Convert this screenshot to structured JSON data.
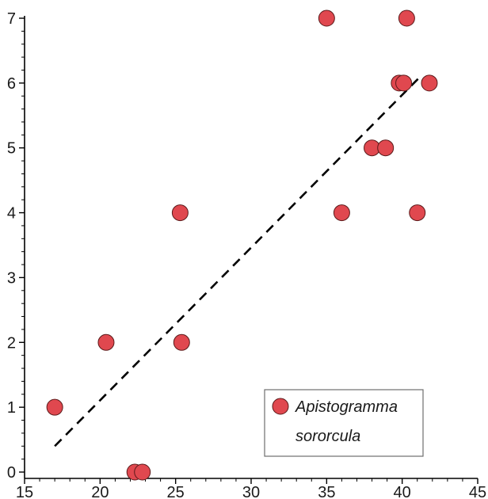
{
  "chart_data": {
    "type": "scatter",
    "title": "",
    "xlabel": "",
    "ylabel": "",
    "xlim": [
      15,
      45
    ],
    "ylim": [
      0,
      7
    ],
    "x_ticks": [
      15,
      20,
      25,
      30,
      35,
      40,
      45
    ],
    "y_ticks": [
      0,
      1,
      2,
      3,
      4,
      5,
      6,
      7
    ],
    "grid": false,
    "legend_position": "bottom-right",
    "marker_color": "#e0484f",
    "marker_edge_color": "#5a1a1a",
    "series": [
      {
        "name": "Apistogramma sororcula",
        "legend_lines": [
          "Apistogramma",
          "sororcula"
        ],
        "x": [
          17.0,
          20.4,
          22.3,
          22.8,
          25.3,
          25.4,
          35.0,
          36.0,
          38.0,
          38.9,
          39.8,
          40.1,
          40.3,
          41.0,
          41.8
        ],
        "y": [
          1,
          2,
          0,
          0,
          4,
          2,
          7,
          4,
          5,
          5,
          6,
          6,
          7,
          4,
          6
        ]
      }
    ],
    "trendline": {
      "style": "dashed",
      "color": "#000000",
      "x": [
        17.0,
        41.2
      ],
      "y": [
        0.4,
        6.1
      ]
    }
  }
}
